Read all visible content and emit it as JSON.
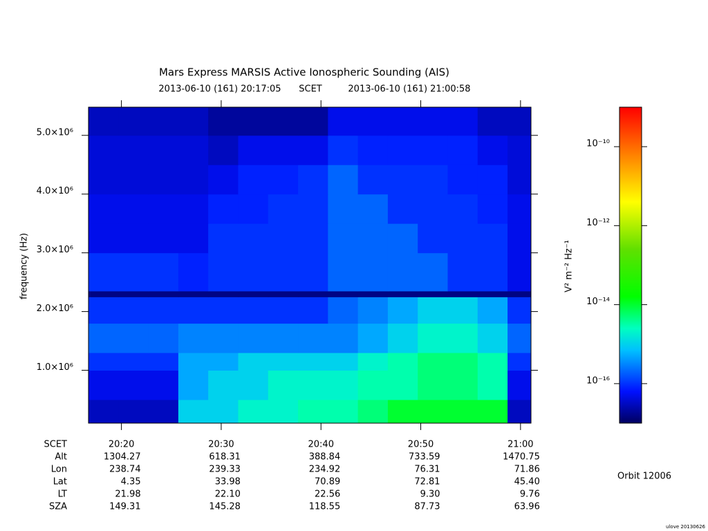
{
  "chart_data": {
    "type": "heatmap",
    "title": "Mars Express MARSIS Active Ionospheric Sounding (AIS)",
    "subtitle_start": "2013-06-10 (161) 20:17:05",
    "subtitle_scale": "SCET",
    "subtitle_end": "2013-06-10 (161) 21:00:58",
    "ylabel": "frequency (Hz)",
    "colorbar_label": "V² m⁻² Hz⁻¹",
    "xlim": [
      1216.7,
      1261.05
    ],
    "ylim": [
      100000,
      5480000
    ],
    "xticks": [
      {
        "value": 1220,
        "label": "20:20"
      },
      {
        "value": 1230,
        "label": "20:30"
      },
      {
        "value": 1240,
        "label": "20:40"
      },
      {
        "value": 1250,
        "label": "20:50"
      },
      {
        "value": 1260,
        "label": "21:00"
      }
    ],
    "yticks": [
      {
        "value": 1000000,
        "label": "1.0×10⁶"
      },
      {
        "value": 2000000,
        "label": "2.0×10⁶"
      },
      {
        "value": 3000000,
        "label": "3.0×10⁶"
      },
      {
        "value": 4000000,
        "label": "4.0×10⁶"
      },
      {
        "value": 5000000,
        "label": "5.0×10⁶"
      }
    ],
    "zlim": [
      1e-17,
      1e-09
    ],
    "zlog": true,
    "zticks": [
      {
        "value": 1e-10,
        "label": "10⁻¹⁰"
      },
      {
        "value": 1e-12,
        "label": "10⁻¹²"
      },
      {
        "value": 1e-14,
        "label": "10⁻¹⁴"
      },
      {
        "value": 1e-16,
        "label": "10⁻¹⁶"
      }
    ],
    "colormap": [
      [
        0,
        "#000060"
      ],
      [
        0.1,
        "#0010ff"
      ],
      [
        0.23,
        "#00c0ff"
      ],
      [
        0.3,
        "#00ffc0"
      ],
      [
        0.4,
        "#00ff00"
      ],
      [
        0.55,
        "#60e000"
      ],
      [
        0.7,
        "#ffff00"
      ],
      [
        0.85,
        "#ff8000"
      ],
      [
        1,
        "#ff0000"
      ]
    ],
    "x_edges": [
      1216.7,
      1219.7,
      1222.7,
      1225.7,
      1228.7,
      1231.7,
      1234.7,
      1237.7,
      1240.7,
      1243.7,
      1246.7,
      1249.7,
      1252.7,
      1255.7,
      1258.7,
      1261.05
    ],
    "y_edges": [
      100000,
      500000,
      1000000,
      1300000,
      1800000,
      2250000,
      2350000,
      3000000,
      3500000,
      4000000,
      4500000,
      5000000,
      5480000
    ],
    "values": [
      [
        3e-17,
        3e-17,
        3e-17,
        1e-15,
        1e-15,
        2e-15,
        2e-15,
        3e-15,
        3e-15,
        5e-15,
        1e-14,
        1e-14,
        1e-14,
        1e-14,
        3e-17
      ],
      [
        5e-17,
        5e-17,
        5e-17,
        5e-16,
        1e-15,
        1e-15,
        2e-15,
        2e-15,
        2e-15,
        3e-15,
        3e-15,
        5e-15,
        5e-15,
        3e-15,
        5e-17
      ],
      [
        1e-16,
        1e-16,
        1e-16,
        5e-16,
        5e-16,
        1e-15,
        1e-15,
        1e-15,
        1e-15,
        2e-15,
        3e-15,
        5e-15,
        5e-15,
        3e-15,
        1e-16
      ],
      [
        2e-16,
        2e-16,
        2e-16,
        3e-16,
        3e-16,
        3e-16,
        3e-16,
        3e-16,
        3e-16,
        5e-16,
        1e-15,
        2e-15,
        2e-15,
        1e-15,
        2e-16
      ],
      [
        1e-16,
        1e-16,
        1e-16,
        1e-16,
        1e-16,
        1e-16,
        1e-16,
        1e-16,
        2e-16,
        3e-16,
        5e-16,
        1e-15,
        1e-15,
        5e-16,
        1e-16
      ],
      [
        1.5e-17,
        1.5e-17,
        1.5e-17,
        1.5e-17,
        1.5e-17,
        1.5e-17,
        1.5e-17,
        1.5e-17,
        1.5e-17,
        1.5e-17,
        1.5e-17,
        1.5e-17,
        1.5e-17,
        1.5e-17,
        1.5e-17
      ],
      [
        1e-16,
        1e-16,
        1e-16,
        8e-17,
        1e-16,
        1e-16,
        1e-16,
        1e-16,
        2e-16,
        2e-16,
        2e-16,
        2e-16,
        1e-16,
        1e-16,
        5e-17
      ],
      [
        5e-17,
        5e-17,
        5e-17,
        5e-17,
        1e-16,
        1e-16,
        1e-16,
        1e-16,
        2e-16,
        2e-16,
        2e-16,
        1e-16,
        1e-16,
        1e-16,
        5e-17
      ],
      [
        5e-17,
        5e-17,
        5e-17,
        5e-17,
        8e-17,
        8e-17,
        1e-16,
        1e-16,
        2e-16,
        2e-16,
        1e-16,
        1e-16,
        1e-16,
        8e-17,
        5e-17
      ],
      [
        4e-17,
        4e-17,
        4e-17,
        4e-17,
        5e-17,
        8e-17,
        8e-17,
        1e-16,
        2e-16,
        1e-16,
        1e-16,
        1e-16,
        8e-17,
        8e-17,
        4e-17
      ],
      [
        4e-17,
        4e-17,
        4e-17,
        4e-17,
        3e-17,
        5e-17,
        5e-17,
        5e-17,
        1e-16,
        8e-17,
        8e-17,
        8e-17,
        8e-17,
        5e-17,
        4e-17
      ],
      [
        3e-17,
        3e-17,
        3e-17,
        3e-17,
        2e-17,
        2e-17,
        2e-17,
        2e-17,
        5e-17,
        5e-17,
        5e-17,
        5e-17,
        5e-17,
        3e-17,
        3e-17
      ]
    ],
    "ephemeris": {
      "scet_label": "SCET",
      "rows": [
        {
          "label": "Alt",
          "values": [
            "1304.27",
            "618.31",
            "388.84",
            "733.59",
            "1470.75"
          ]
        },
        {
          "label": "Lon",
          "values": [
            "238.74",
            "239.33",
            "234.92",
            "76.31",
            "71.86"
          ]
        },
        {
          "label": "Lat",
          "values": [
            "4.35",
            "33.98",
            "70.89",
            "72.81",
            "45.40"
          ]
        },
        {
          "label": "LT",
          "values": [
            "21.98",
            "22.10",
            "22.56",
            "9.30",
            "9.76"
          ]
        },
        {
          "label": "SZA",
          "values": [
            "149.31",
            "145.28",
            "118.55",
            "87.73",
            "63.96"
          ]
        }
      ]
    },
    "orbit": "Orbit 12006",
    "footer": "ulove 20130626"
  }
}
